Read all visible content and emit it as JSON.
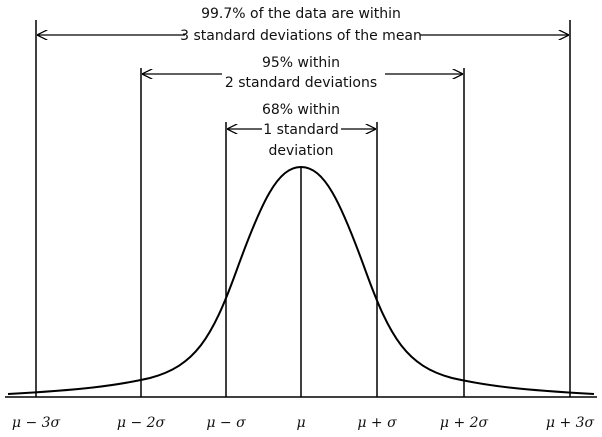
{
  "annotations": [
    {
      "lines": [
        "99.7% of the data are within",
        "3 standard deviations of the mean"
      ]
    },
    {
      "lines": [
        "95% within",
        "2 standard deviations"
      ]
    },
    {
      "lines": [
        "68% within",
        "1 standard",
        "deviation"
      ]
    }
  ],
  "axis_labels": [
    "μ − 3σ",
    "μ − 2σ",
    "μ − σ",
    "μ",
    "μ + σ",
    "μ + 2σ",
    "μ + 3σ"
  ]
}
